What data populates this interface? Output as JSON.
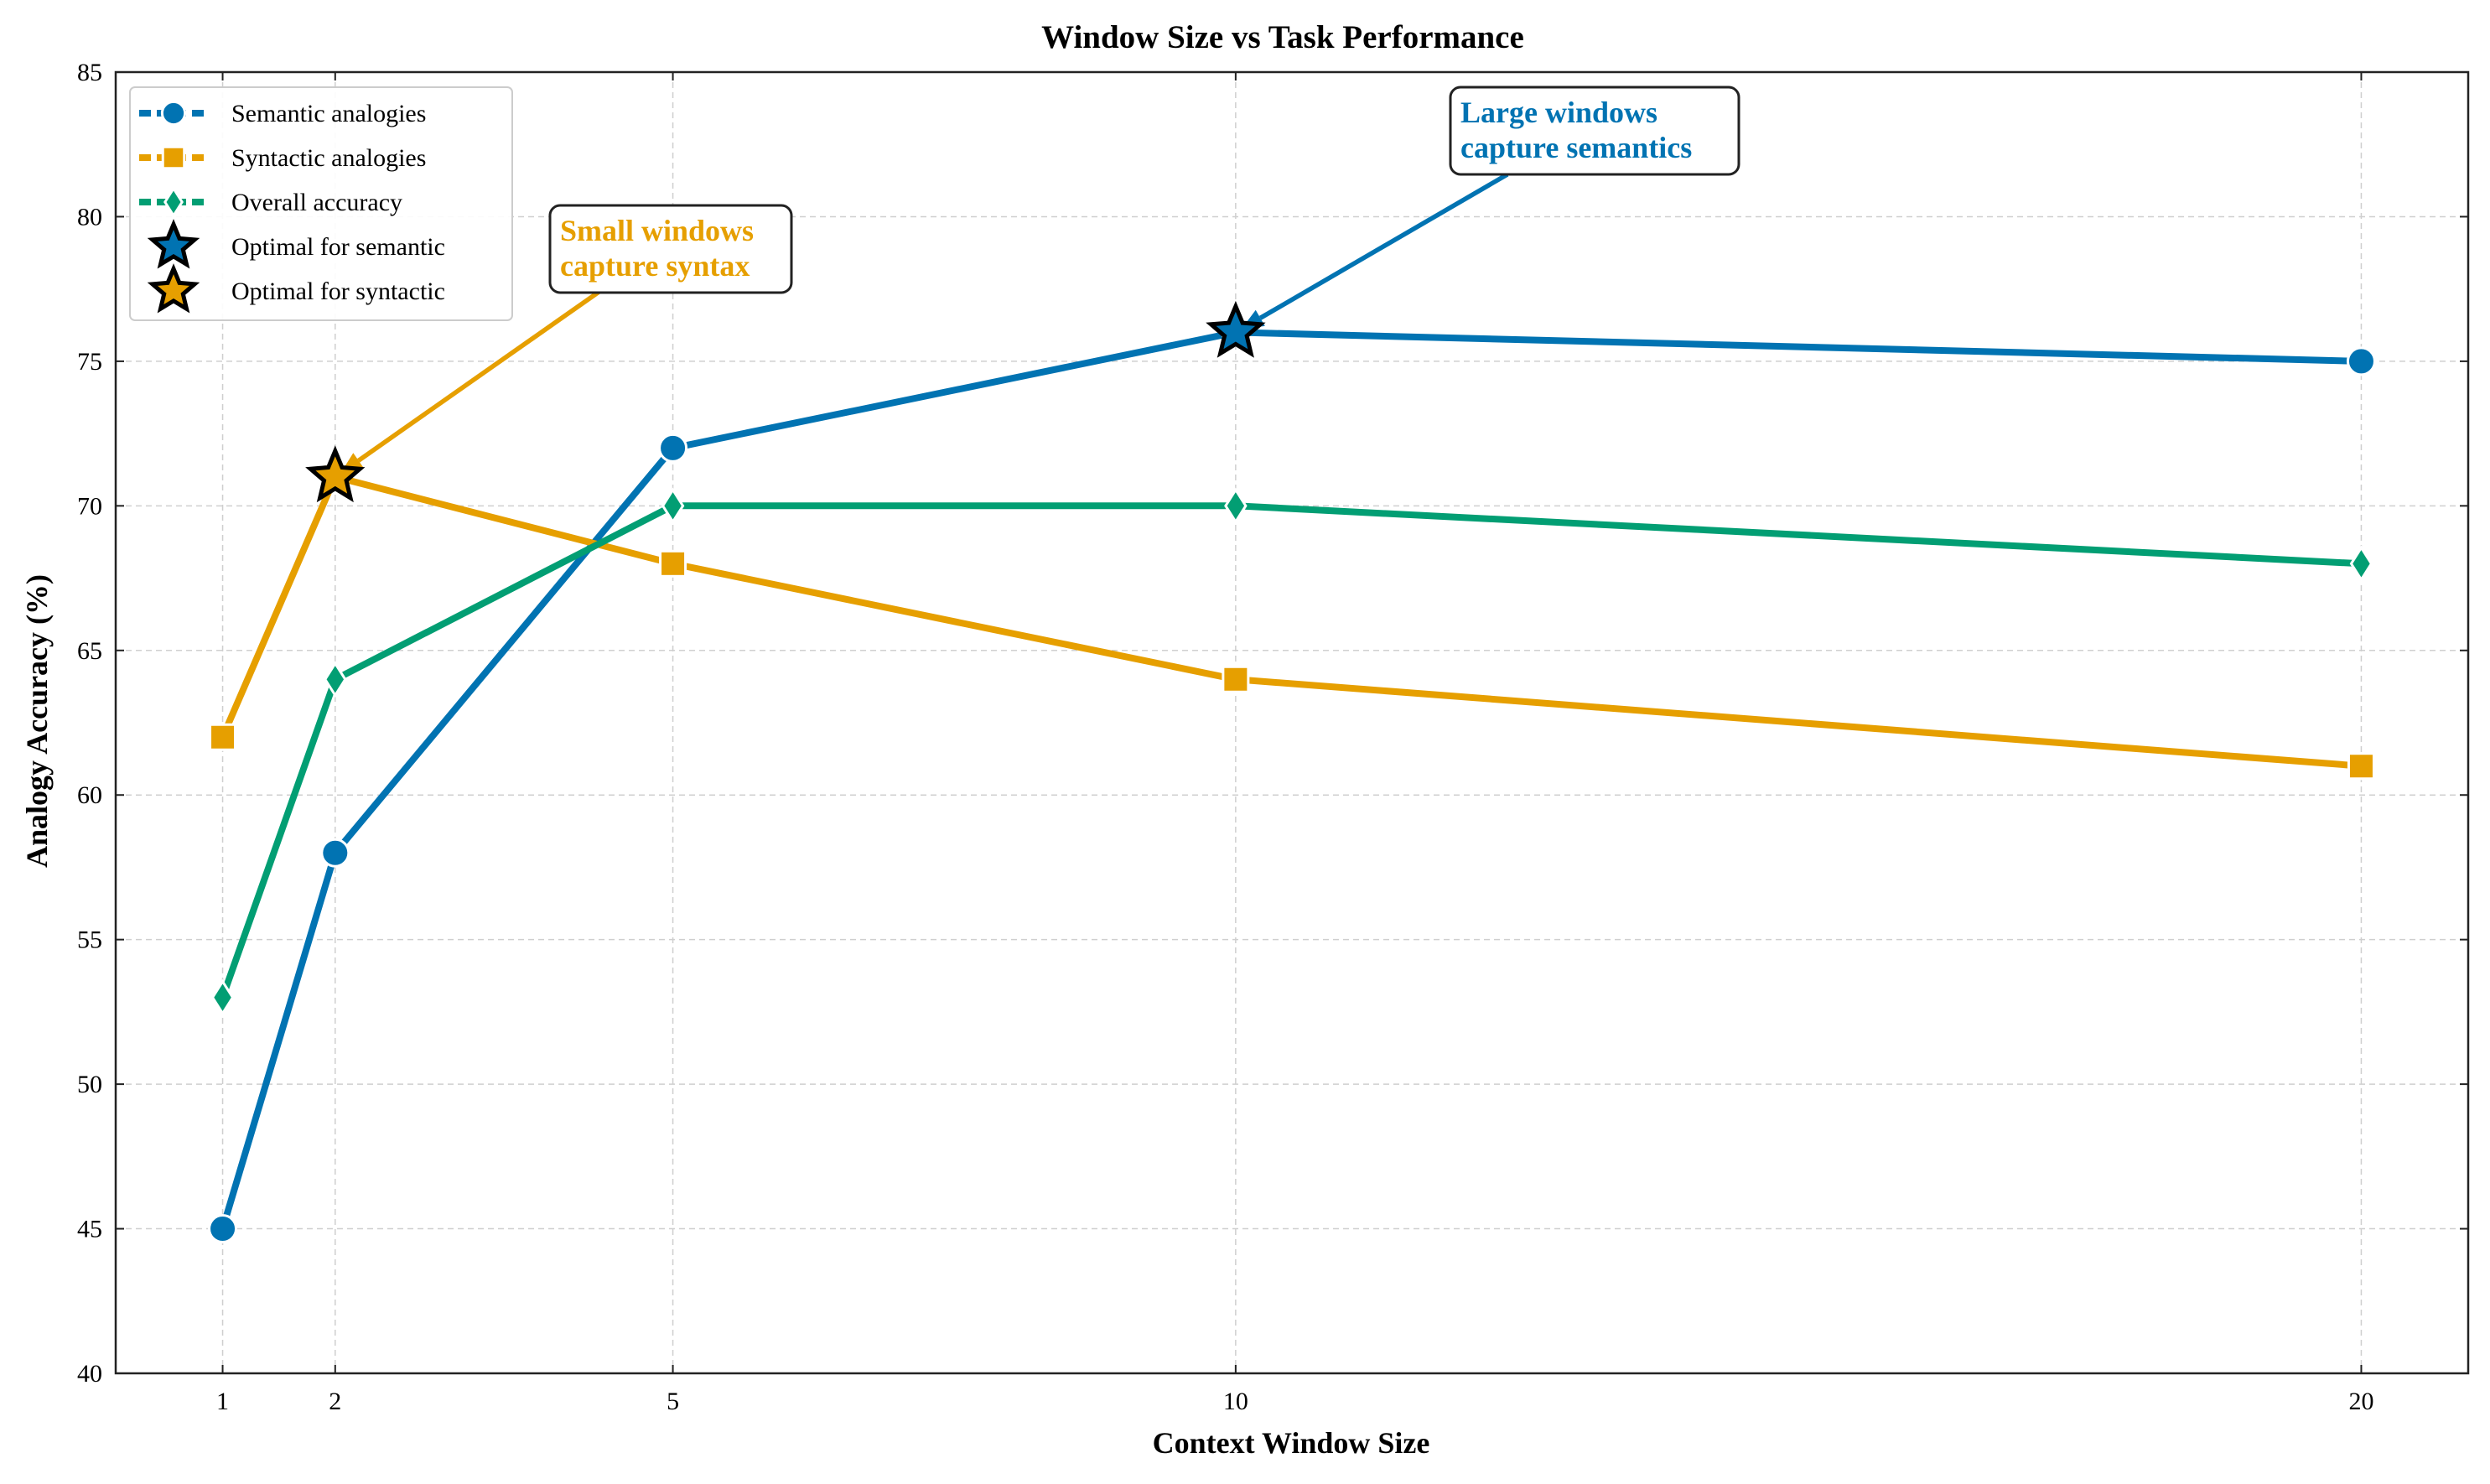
{
  "chart_data": {
    "type": "line",
    "title": "Window Size vs Task Performance",
    "xlabel": "Context Window Size",
    "ylabel": "Analogy Accuracy (%)",
    "x": [
      1,
      2,
      5,
      10,
      20
    ],
    "xticks": [
      "1",
      "2",
      "5",
      "10",
      "20"
    ],
    "xlim": [
      0.05,
      20.95
    ],
    "ylim": [
      40,
      85
    ],
    "yticks": [
      "40",
      "45",
      "50",
      "55",
      "60",
      "65",
      "70",
      "75",
      "80",
      "85"
    ],
    "grid": true,
    "legend_position": "top-left",
    "series": [
      {
        "name": "Semantic analogies",
        "values": [
          45,
          58,
          72,
          76,
          75
        ],
        "color": "#0173B2",
        "marker": "circle"
      },
      {
        "name": "Syntactic analogies",
        "values": [
          62,
          71,
          68,
          64,
          61
        ],
        "color": "#E69F00",
        "marker": "square"
      },
      {
        "name": "Overall accuracy",
        "values": [
          53,
          64,
          70,
          70,
          68
        ],
        "color": "#029E73",
        "marker": "diamond"
      }
    ],
    "highlights": [
      {
        "name": "Optimal for semantic",
        "x": 10,
        "y": 76,
        "color": "#0173B2",
        "marker": "star"
      },
      {
        "name": "Optimal for syntactic",
        "x": 2,
        "y": 71,
        "color": "#E69F00",
        "marker": "star"
      }
    ],
    "annotations": [
      {
        "lines": [
          "Large windows",
          "capture semantics"
        ],
        "color": "#0173B2",
        "target_x": 10,
        "target_y": 76
      },
      {
        "lines": [
          "Small windows",
          "capture syntax"
        ],
        "color": "#E69F00",
        "target_x": 2,
        "target_y": 71
      }
    ]
  }
}
